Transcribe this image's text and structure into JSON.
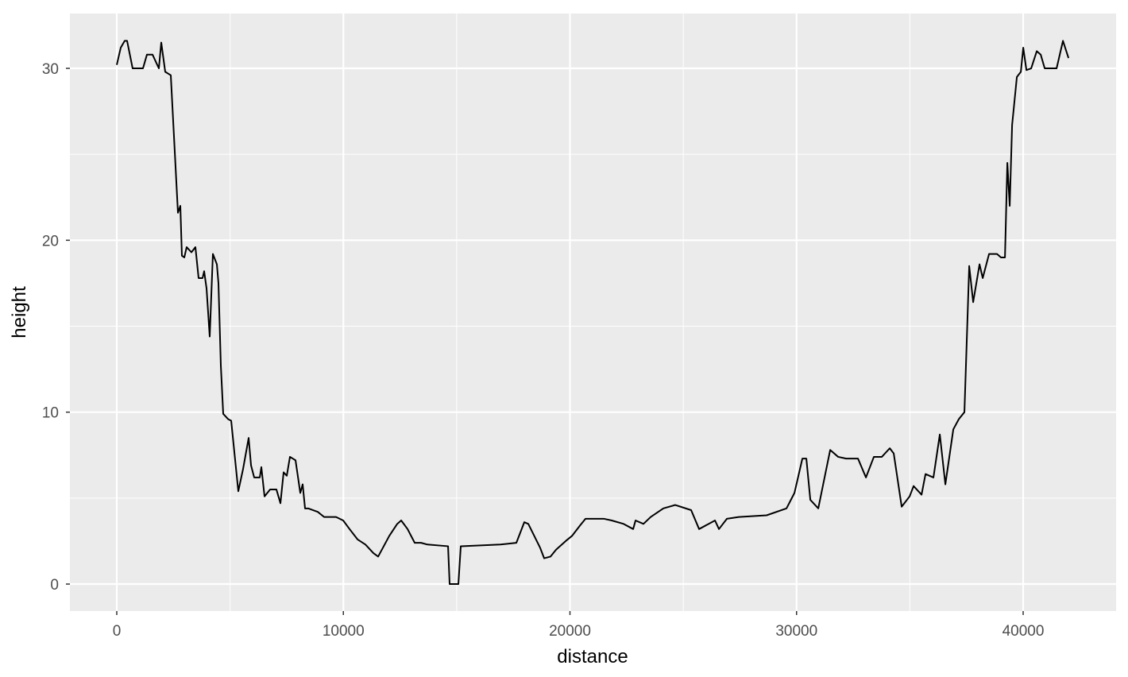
{
  "chart_data": {
    "type": "line",
    "x_label": "distance",
    "y_label": "height",
    "xlim": [
      -2068,
      44101
    ],
    "ylim": [
      -1.57,
      33.19
    ],
    "xticks": [
      0,
      10000,
      20000,
      30000,
      40000
    ],
    "yticks": [
      0,
      10,
      20,
      30
    ],
    "minor_xgrid": [
      5000,
      15000,
      25000,
      35000
    ],
    "minor_ygrid": [
      5,
      15,
      25
    ],
    "grid": true,
    "background": "#ebebeb",
    "series": [
      {
        "color": "#000000",
        "x": [
          0,
          175,
          350,
          456,
          700,
          1157,
          1332,
          1578,
          1858,
          1963,
          2139,
          2384,
          2700,
          2805,
          2875,
          2980,
          3085,
          3295,
          3471,
          3611,
          3786,
          3856,
          3962,
          4102,
          4242,
          4418,
          4488,
          4593,
          4698,
          4909,
          5049,
          5364,
          5575,
          5820,
          5926,
          6065,
          6311,
          6381,
          6521,
          6767,
          7047,
          7223,
          7363,
          7503,
          7643,
          7889,
          8099,
          8204,
          8309,
          8449,
          8870,
          9151,
          9677,
          9992,
          10273,
          10624,
          10974,
          11325,
          11535,
          11781,
          12026,
          12377,
          12552,
          12833,
          13148,
          13428,
          13709,
          14620,
          14690,
          15076,
          15181,
          16934,
          17635,
          17986,
          18161,
          18687,
          18862,
          19143,
          19388,
          19809,
          20089,
          20440,
          20685,
          21492,
          21842,
          22368,
          22789,
          22894,
          23244,
          23560,
          24121,
          24647,
          25348,
          25699,
          26400,
          26575,
          26926,
          27452,
          28679,
          29556,
          29907,
          30257,
          30432,
          30608,
          30958,
          31484,
          31835,
          32185,
          32711,
          33062,
          33412,
          33763,
          34113,
          34288,
          34639,
          34990,
          35165,
          35516,
          35691,
          36041,
          36322,
          36567,
          36918,
          37163,
          37408,
          37619,
          37794,
          38075,
          38215,
          38495,
          38846,
          39021,
          39197,
          39302,
          39407,
          39512,
          39723,
          39898,
          40004,
          40144,
          40354,
          40600,
          40775,
          40950,
          41476,
          41757,
          42002
        ],
        "values": [
          30.2,
          31.2,
          31.6,
          31.6,
          30.0,
          30.0,
          30.8,
          30.8,
          30.0,
          31.5,
          29.8,
          29.6,
          21.6,
          22.0,
          19.1,
          19.0,
          19.6,
          19.3,
          19.6,
          17.8,
          17.8,
          18.2,
          17.2,
          14.4,
          19.2,
          18.6,
          17.5,
          12.7,
          9.9,
          9.6,
          9.5,
          5.4,
          6.7,
          8.5,
          6.9,
          6.2,
          6.2,
          6.8,
          5.1,
          5.5,
          5.5,
          4.7,
          6.5,
          6.3,
          7.4,
          7.2,
          5.3,
          5.8,
          4.4,
          4.4,
          4.2,
          3.9,
          3.9,
          3.7,
          3.2,
          2.6,
          2.3,
          1.8,
          1.6,
          2.2,
          2.8,
          3.5,
          3.7,
          3.2,
          2.4,
          2.4,
          2.3,
          2.2,
          0,
          0,
          2.2,
          2.3,
          2.4,
          3.6,
          3.5,
          2.1,
          1.5,
          1.6,
          2.0,
          2.5,
          2.8,
          3.4,
          3.8,
          3.8,
          3.7,
          3.5,
          3.2,
          3.7,
          3.5,
          3.9,
          4.4,
          4.6,
          4.3,
          3.2,
          3.7,
          3.2,
          3.8,
          3.9,
          4.0,
          4.4,
          5.3,
          7.3,
          7.3,
          4.9,
          4.4,
          7.8,
          7.4,
          7.3,
          7.3,
          6.2,
          7.4,
          7.4,
          7.9,
          7.6,
          4.5,
          5.1,
          5.7,
          5.2,
          6.4,
          6.2,
          8.7,
          5.8,
          9.0,
          9.6,
          10.0,
          18.5,
          16.4,
          18.6,
          17.8,
          19.2,
          19.2,
          19.0,
          19.0,
          24.5,
          22.0,
          26.7,
          29.5,
          29.8,
          31.2,
          29.9,
          30.0,
          31.0,
          30.8,
          30.0,
          30.0,
          31.6,
          30.6
        ]
      }
    ]
  }
}
